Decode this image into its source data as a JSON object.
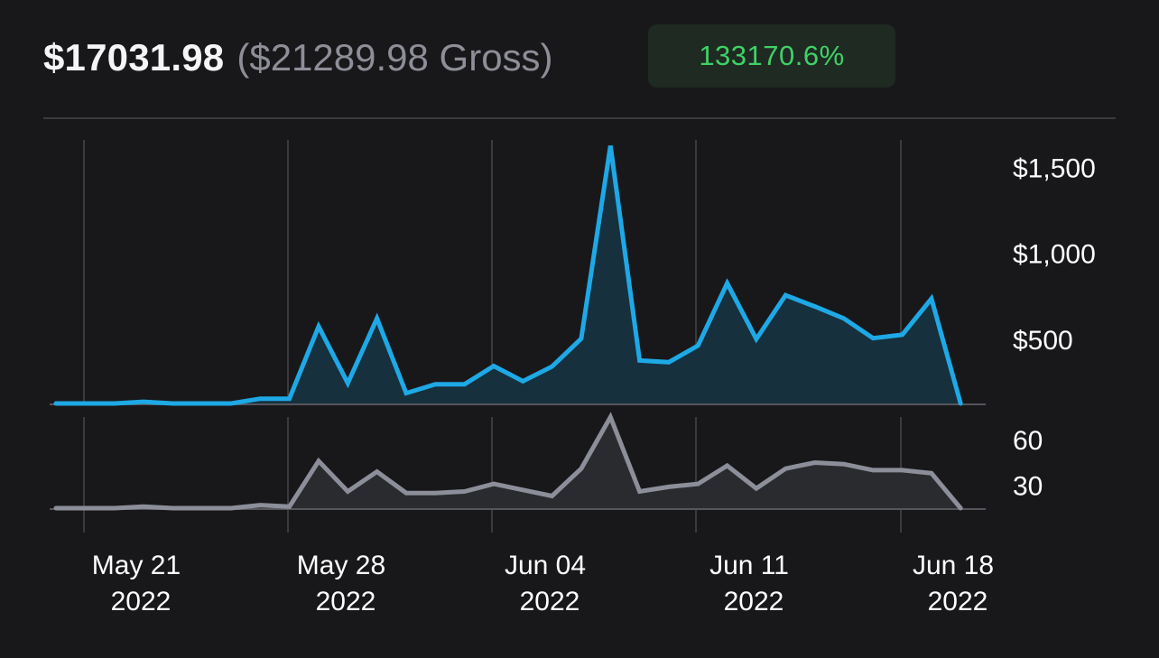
{
  "header": {
    "net_total": "$17031.98",
    "gross_total": "($21289.98 Gross)",
    "change_badge": "133170.6%"
  },
  "colors": {
    "background": "#18181b",
    "revenue_line": "#1ea9e6",
    "revenue_fill": "#16303e",
    "sales_line": "#8c8f99",
    "sales_fill": "#2a2b2e",
    "badge_bg": "#1f2a22",
    "badge_text": "#3fd166",
    "gridline": "#3a3a3f"
  },
  "chart_data": [
    {
      "type": "area",
      "y_axis_side": "right",
      "y_tick_labels": [
        "$1,500",
        "$1,000",
        "$500"
      ],
      "y_ticks": [
        1500,
        1000,
        500
      ],
      "ylim": [
        0,
        1550
      ],
      "xlim": [
        0,
        31
      ],
      "x_tick_labels": [
        {
          "line1": "May 21",
          "line2": "2022"
        },
        {
          "line1": "May 28",
          "line2": "2022"
        },
        {
          "line1": "Jun 04",
          "line2": "2022"
        },
        {
          "line1": "Jun 11",
          "line2": "2022"
        },
        {
          "line1": "Jun 18",
          "line2": "2022"
        }
      ],
      "x_ticks": [
        1,
        8,
        15,
        22,
        29
      ],
      "grid": "vertical",
      "x": [
        "May 20",
        "May 21",
        "May 22",
        "May 23",
        "May 24",
        "May 25",
        "May 26",
        "May 27",
        "May 28",
        "May 29",
        "May 30",
        "May 31",
        "Jun 01",
        "Jun 02",
        "Jun 03",
        "Jun 04",
        "Jun 05",
        "Jun 06",
        "Jun 07",
        "Jun 08",
        "Jun 09",
        "Jun 10",
        "Jun 11",
        "Jun 12",
        "Jun 13",
        "Jun 14",
        "Jun 15",
        "Jun 16",
        "Jun 17",
        "Jun 18",
        "Jun 19",
        "Jun 20"
      ],
      "series": [
        {
          "values": [
            0,
            0,
            0,
            10,
            0,
            0,
            0,
            28,
            28,
            448,
            118,
            495,
            60,
            112,
            112,
            218,
            130,
            215,
            377,
            1500,
            250,
            240,
            337,
            700,
            375,
            630,
            565,
            495,
            380,
            400,
            610,
            0
          ]
        }
      ]
    },
    {
      "type": "area",
      "y_axis_side": "right",
      "y_tick_labels": [
        "60",
        "30"
      ],
      "y_ticks": [
        60,
        30
      ],
      "ylim": [
        0,
        60
      ],
      "xlim": [
        0,
        31
      ],
      "grid": "vertical",
      "x": [
        "May 20",
        "May 21",
        "May 22",
        "May 23",
        "May 24",
        "May 25",
        "May 26",
        "May 27",
        "May 28",
        "May 29",
        "May 30",
        "May 31",
        "Jun 01",
        "Jun 02",
        "Jun 03",
        "Jun 04",
        "Jun 05",
        "Jun 06",
        "Jun 07",
        "Jun 08",
        "Jun 09",
        "Jun 10",
        "Jun 11",
        "Jun 12",
        "Jun 13",
        "Jun 14",
        "Jun 15",
        "Jun 16",
        "Jun 17",
        "Jun 18",
        "Jun 19",
        "Jun 20"
      ],
      "series": [
        {
          "values": [
            0,
            0,
            0,
            1,
            0,
            0,
            0,
            2,
            1,
            31,
            11,
            24,
            10,
            10,
            11,
            16,
            12,
            8,
            26,
            60,
            11,
            14,
            16,
            28,
            13,
            26,
            30,
            29,
            25,
            25,
            23,
            0
          ]
        }
      ]
    }
  ]
}
